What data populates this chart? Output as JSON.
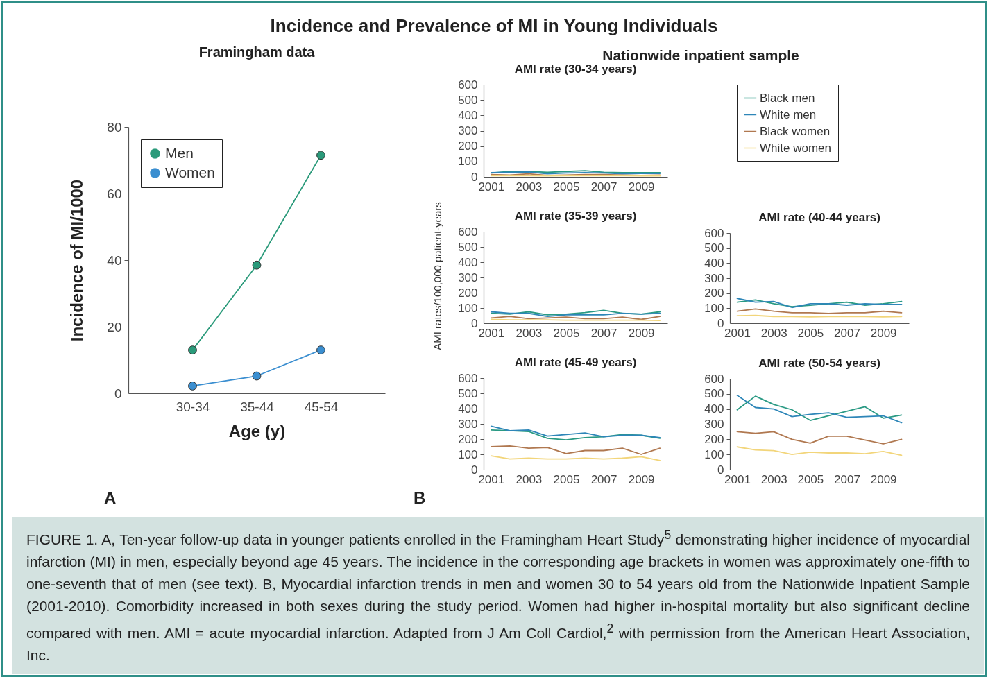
{
  "chart_data": [
    {
      "type": "line",
      "title": "Incidence and Prevalence of MI in Young Individuals",
      "subtitle": "Framingham data",
      "xlabel": "Age (y)",
      "ylabel": "Incidence of MI/1000",
      "categories": [
        "30-34",
        "35-44",
        "45-54"
      ],
      "ylim": [
        0,
        80
      ],
      "yticks": [
        0,
        20,
        40,
        60,
        80
      ],
      "grid": false,
      "legend": "top left",
      "marker": "circle",
      "annotations": [
        "A",
        "FIGURE 1. A, Ten-year follow-up data in younger patients enrolled in the Framingham Heart Study$^{5}$ demonstrating higher incidence of myocardial infarction (MI) in men, especially beyond age 45 years. The incidence in the corresponding age brackets in women was approximately one-fifth to one-seventh that of men (see text). B, Myocardial infarction trends in men and women 30 to 54 years old from the Nationwide Inpatient Sample (2001-2010). Comorbidity increased in both sexes during the study period. Women had higher in-hospital mortality but also significant decline compared with men. AMI = acute myocardial infarction. Adapted from J Am Coll Cardiol,$^{2}$ with permission from the American Heart Association, Inc."
      ],
      "series": [
        {
          "name": "Men",
          "color": "#2a9a7a",
          "values": [
            13,
            38.5,
            71.5
          ]
        },
        {
          "name": "Women",
          "color": "#3a8ed0",
          "values": [
            2.2,
            5.2,
            13
          ]
        }
      ]
    },
    {
      "type": "line",
      "title": "AMI rate (30-34 years)",
      "x": [
        2001,
        2002,
        2003,
        2004,
        2005,
        2006,
        2007,
        2008,
        2009,
        2010
      ],
      "xlim": [
        2000.6,
        2010.4
      ],
      "xticks": [
        2001,
        2003,
        2005,
        2007,
        2009
      ],
      "ylim": [
        0,
        600
      ],
      "yticks": [
        0,
        100,
        200,
        300,
        400,
        500,
        600
      ],
      "grid": false,
      "legend": "right",
      "annotations": [
        "Nationwide inpatient sample",
        "B"
      ],
      "series": [
        {
          "name": "Black men",
          "color": "#2a9a84",
          "values": [
            25,
            35,
            35,
            30,
            35,
            40,
            30,
            28,
            28,
            28
          ]
        },
        {
          "name": "White men",
          "color": "#2e86b8",
          "values": [
            28,
            30,
            32,
            20,
            25,
            28,
            25,
            20,
            22,
            22
          ]
        },
        {
          "name": "Black women",
          "color": "#b07850",
          "values": [
            15,
            12,
            20,
            10,
            12,
            15,
            15,
            12,
            10,
            12
          ]
        },
        {
          "name": "White women",
          "color": "#f2d57a",
          "values": [
            8,
            8,
            8,
            6,
            7,
            8,
            8,
            7,
            6,
            6
          ]
        }
      ]
    },
    {
      "type": "line",
      "title": "AMI rate (35-39 years)",
      "ylabel": "AMI rates/100,000 patient-years",
      "x": [
        2001,
        2002,
        2003,
        2004,
        2005,
        2006,
        2007,
        2008,
        2009,
        2010
      ],
      "xlim": [
        2000.6,
        2010.4
      ],
      "xticks": [
        2001,
        2003,
        2005,
        2007,
        2009
      ],
      "ylim": [
        0,
        600
      ],
      "yticks": [
        0,
        100,
        200,
        300,
        400,
        500,
        600
      ],
      "grid": false,
      "series": [
        {
          "color": "#2a9a84",
          "values": [
            65,
            60,
            75,
            55,
            60,
            70,
            85,
            65,
            60,
            75
          ]
        },
        {
          "color": "#2e86b8",
          "values": [
            75,
            65,
            65,
            45,
            55,
            55,
            55,
            65,
            60,
            65
          ]
        },
        {
          "color": "#b07850",
          "values": [
            35,
            45,
            30,
            35,
            40,
            30,
            30,
            40,
            25,
            45
          ]
        },
        {
          "color": "#f2d57a",
          "values": [
            25,
            22,
            22,
            22,
            20,
            20,
            20,
            20,
            20,
            18
          ]
        }
      ]
    },
    {
      "type": "line",
      "title": "AMI rate (40-44 years)",
      "x": [
        2001,
        2002,
        2003,
        2004,
        2005,
        2006,
        2007,
        2008,
        2009,
        2010
      ],
      "xlim": [
        2000.6,
        2010.4
      ],
      "xticks": [
        2001,
        2003,
        2005,
        2007,
        2009
      ],
      "ylim": [
        0,
        600
      ],
      "yticks": [
        0,
        100,
        200,
        300,
        400,
        500,
        600
      ],
      "grid": false,
      "series": [
        {
          "color": "#2a9a84",
          "values": [
            140,
            155,
            130,
            110,
            120,
            130,
            140,
            120,
            130,
            145
          ]
        },
        {
          "color": "#2e86b8",
          "values": [
            165,
            140,
            145,
            105,
            130,
            130,
            120,
            130,
            125,
            125
          ]
        },
        {
          "color": "#b07850",
          "values": [
            80,
            95,
            80,
            70,
            70,
            65,
            70,
            70,
            80,
            70
          ]
        },
        {
          "color": "#f2d57a",
          "values": [
            50,
            52,
            45,
            45,
            42,
            45,
            45,
            45,
            42,
            45
          ]
        }
      ]
    },
    {
      "type": "line",
      "title": "AMI rate (45-49 years)",
      "x": [
        2001,
        2002,
        2003,
        2004,
        2005,
        2006,
        2007,
        2008,
        2009,
        2010
      ],
      "xlim": [
        2000.6,
        2010.4
      ],
      "xticks": [
        2001,
        2003,
        2005,
        2007,
        2009
      ],
      "ylim": [
        0,
        600
      ],
      "yticks": [
        0,
        100,
        200,
        300,
        400,
        500,
        600
      ],
      "grid": false,
      "series": [
        {
          "color": "#2a9a84",
          "values": [
            260,
            255,
            250,
            205,
            195,
            210,
            215,
            230,
            225,
            205
          ]
        },
        {
          "color": "#2e86b8",
          "values": [
            285,
            255,
            260,
            220,
            230,
            240,
            215,
            225,
            225,
            210
          ]
        },
        {
          "color": "#b07850",
          "values": [
            150,
            155,
            140,
            145,
            105,
            125,
            125,
            140,
            100,
            140
          ]
        },
        {
          "color": "#f2d57a",
          "values": [
            90,
            70,
            75,
            70,
            70,
            75,
            70,
            75,
            85,
            60
          ]
        }
      ]
    },
    {
      "type": "line",
      "title": "AMI rate (50-54 years)",
      "x": [
        2001,
        2002,
        2003,
        2004,
        2005,
        2006,
        2007,
        2008,
        2009,
        2010
      ],
      "xlim": [
        2000.6,
        2010.4
      ],
      "xticks": [
        2001,
        2003,
        2005,
        2007,
        2009
      ],
      "ylim": [
        0,
        600
      ],
      "yticks": [
        0,
        100,
        200,
        300,
        400,
        500,
        600
      ],
      "grid": false,
      "series": [
        {
          "color": "#2a9a84",
          "values": [
            395,
            485,
            430,
            395,
            325,
            355,
            385,
            415,
            340,
            360
          ]
        },
        {
          "color": "#2e86b8",
          "values": [
            490,
            410,
            400,
            350,
            365,
            375,
            345,
            350,
            355,
            310
          ]
        },
        {
          "color": "#b07850",
          "values": [
            250,
            240,
            250,
            200,
            175,
            220,
            220,
            195,
            170,
            200
          ]
        },
        {
          "color": "#f2d57a",
          "values": [
            150,
            130,
            125,
            100,
            115,
            110,
            110,
            105,
            120,
            95
          ]
        }
      ]
    }
  ]
}
